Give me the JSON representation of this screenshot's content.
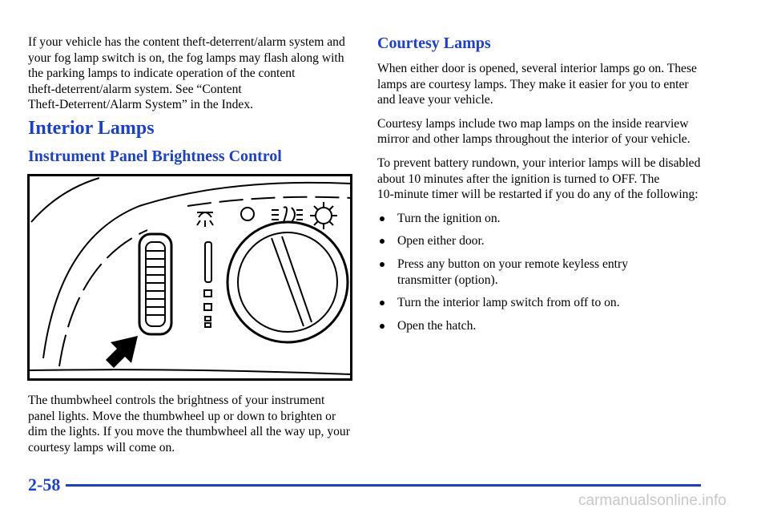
{
  "left": {
    "intro": "If your vehicle has the content theft‑deterrent/alarm system and your fog lamp switch is on, the fog lamps may flash along with the parking lamps to indicate operation of the content theft‑deterrent/alarm system. See “Content Theft‑Deterrent/Alarm System” in the Index.",
    "heading": "Interior Lamps",
    "subheading": "Instrument Panel Brightness Control",
    "caption": "The thumbwheel controls the brightness of your instrument panel lights. Move the thumbwheel up or down to brighten or dim the lights. If you move the thumbwheel all the way up, your courtesy lamps will come on."
  },
  "right": {
    "heading": "Courtesy Lamps",
    "paragraphs": [
      "When either door is opened, several interior lamps go on. These lamps are courtesy lamps. They make it easier for you to enter and leave your vehicle.",
      "Courtesy lamps include two map lamps on the inside rearview mirror and other lamps throughout the interior of your vehicle.",
      "To prevent battery rundown, your interior lamps will be disabled about 10 minutes after the ignition is turned to OFF. The 10‑minute timer will be restarted if you do any of the following:"
    ],
    "bullets": [
      "Turn the ignition on.",
      "Open either door.",
      "Press any button on your remote keyless entry transmitter (option).",
      "Turn the interior lamp switch from off to on.",
      "Open the hatch."
    ]
  },
  "footer": {
    "page_number": "2-58",
    "watermark": "carmanualsonline.info"
  }
}
